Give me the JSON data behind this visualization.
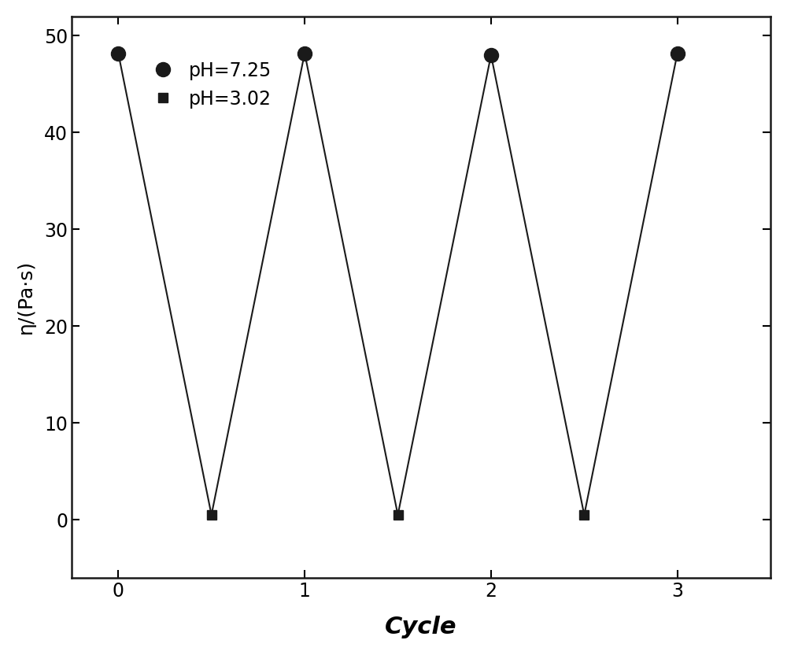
{
  "x_values": [
    0,
    0.5,
    1,
    1.5,
    2,
    2.5,
    3
  ],
  "y_values": [
    48.2,
    0.5,
    48.2,
    0.5,
    48.0,
    0.5,
    48.2
  ],
  "marker_types": [
    "o",
    "s",
    "o",
    "s",
    "o",
    "s",
    "o"
  ],
  "line_color": "#1a1a1a",
  "marker_color": "#1a1a1a",
  "marker_size_circle": 13,
  "marker_size_square": 9,
  "xlabel": "Cycle",
  "ylabel": "η/(Pa·s)",
  "xlim": [
    -0.25,
    3.5
  ],
  "ylim": [
    -6,
    52
  ],
  "yticks": [
    0,
    10,
    20,
    30,
    40,
    50
  ],
  "xticks": [
    0,
    1,
    2,
    3
  ],
  "legend_circle_label": "pH=7.25",
  "legend_square_label": "pH=3.02",
  "background_color": "#ffffff",
  "figsize": [
    10.0,
    8.32
  ],
  "dpi": 100
}
